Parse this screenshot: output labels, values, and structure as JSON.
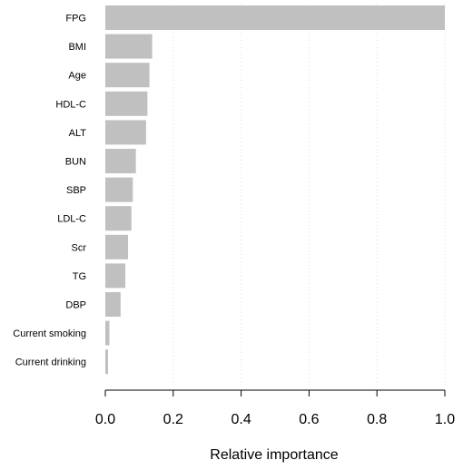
{
  "chart_data": {
    "type": "bar",
    "orientation": "horizontal",
    "title": "",
    "xlabel": "Relative importance",
    "ylabel": "",
    "xlim": [
      0,
      1.0
    ],
    "xticks": [
      "0.0",
      "0.2",
      "0.4",
      "0.6",
      "0.8",
      "1.0"
    ],
    "grid": "vertical dotted gridlines",
    "bar_color": "#c0c0c0",
    "categories": [
      "FPG",
      "BMI",
      "Age",
      "HDL-C",
      "ALT",
      "BUN",
      "SBP",
      "LDL-C",
      "Scr",
      "TG",
      "DBP",
      "Current smoking",
      "Current drinking"
    ],
    "values": [
      1.0,
      0.138,
      0.13,
      0.124,
      0.12,
      0.09,
      0.081,
      0.077,
      0.067,
      0.059,
      0.045,
      0.012,
      0.008
    ]
  }
}
